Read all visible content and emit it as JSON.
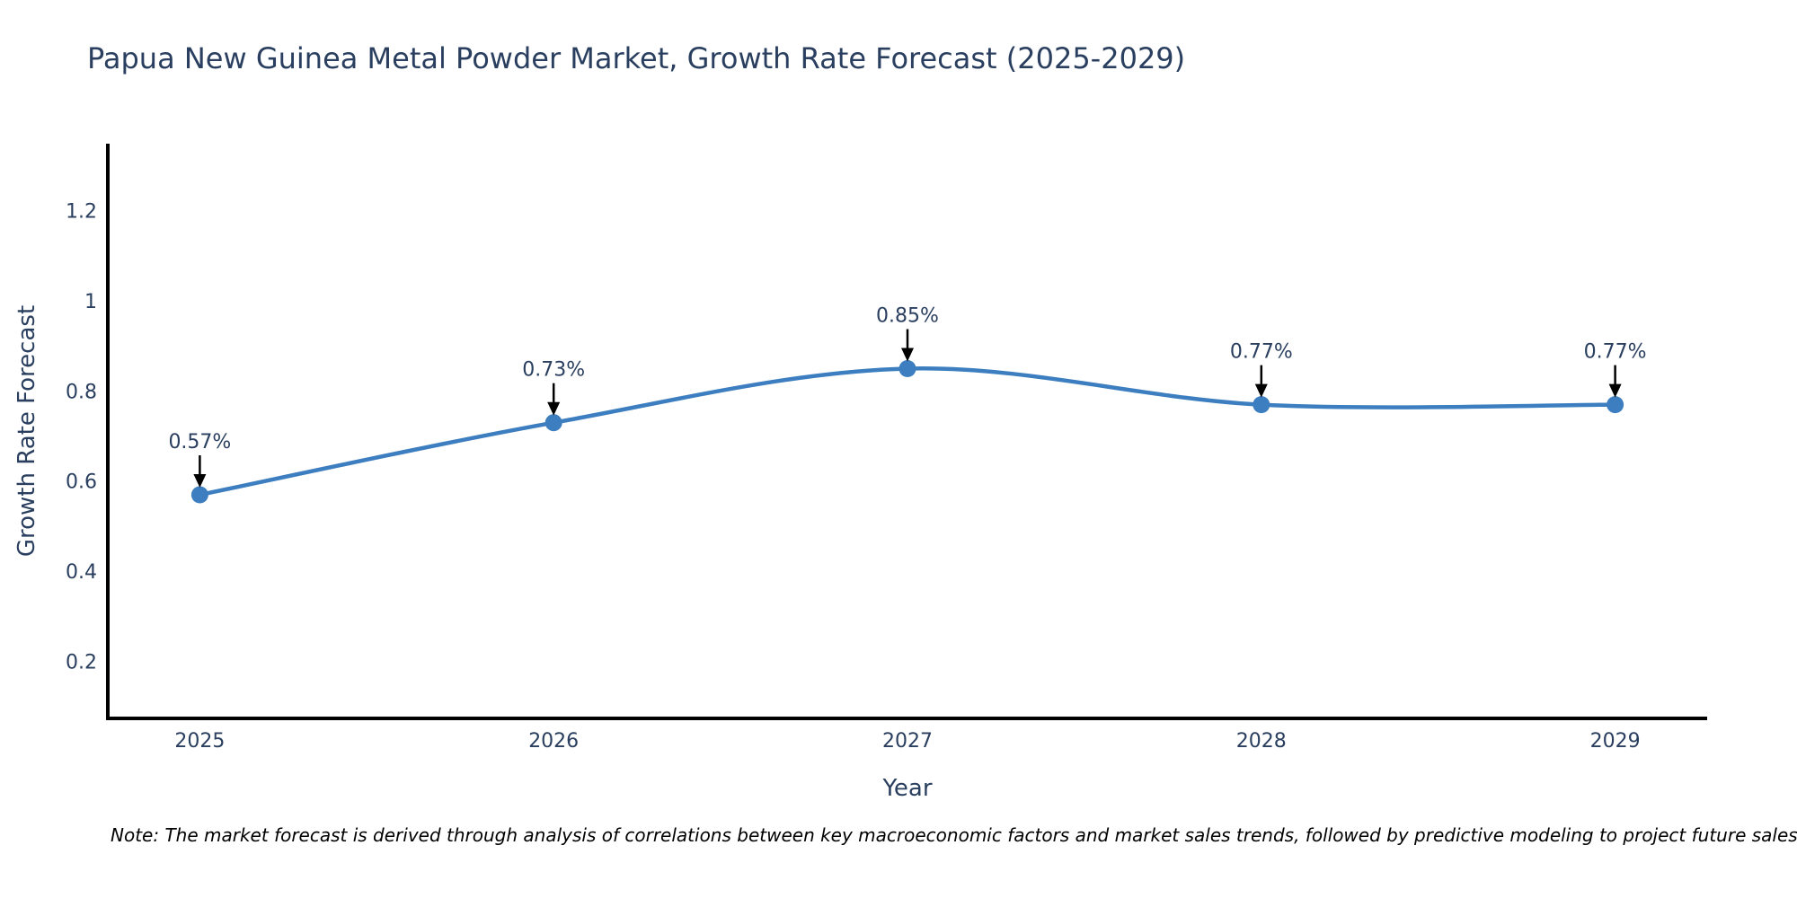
{
  "note": {
    "text": "Note: The market forecast is derived through analysis of correlations between key macroeconomic factors and market sales trends, followed by predictive modeling to project future sales."
  },
  "chart_data": {
    "type": "line",
    "line_shape": "spline",
    "title": "Papua New Guinea Metal Powder Market, Growth Rate Forecast (2025-2029)",
    "xlabel": "Year",
    "ylabel": "Growth Rate Forecast",
    "categories": [
      "2025",
      "2026",
      "2027",
      "2028",
      "2029"
    ],
    "values": [
      0.57,
      0.73,
      0.85,
      0.77,
      0.77
    ],
    "point_labels": [
      "0.57%",
      "0.73%",
      "0.85%",
      "0.77%",
      "0.77%"
    ],
    "yticks": [
      0.2,
      0.4,
      0.6,
      0.8,
      1,
      1.2
    ],
    "ytick_labels": [
      "0.2",
      "0.4",
      "0.6",
      "0.8",
      "1",
      "1.2"
    ],
    "ylim": [
      0.074,
      1.349
    ],
    "grid": false,
    "legend": "none",
    "marker": "circle",
    "annotation_arrows": true,
    "colors": {
      "line": "#3c7ebf",
      "marker": "#3c7ebf",
      "axis_line": "#000000",
      "text": "#2a3f5f",
      "annotation_text": "#2a3f5f",
      "arrow": "#000000",
      "note_text": "#000000",
      "background": "#ffffff"
    }
  }
}
